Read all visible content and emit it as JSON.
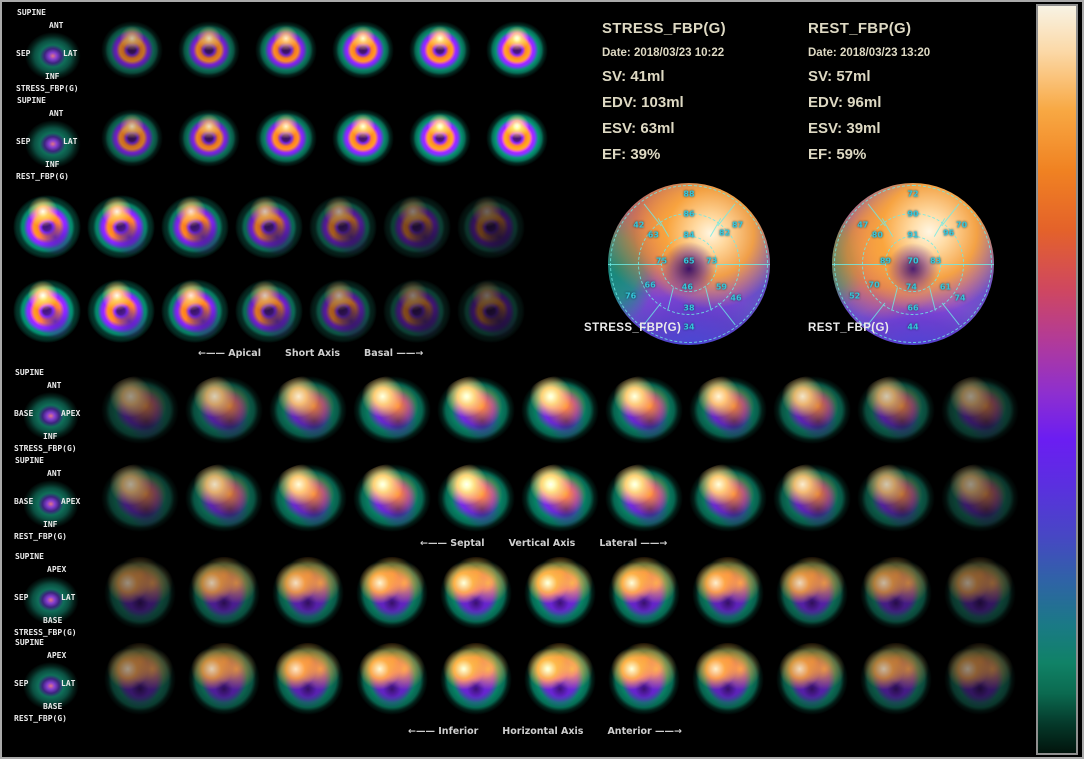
{
  "stress_panel": {
    "title": "STRESS_FBP(G)",
    "date": "Date: 2018/03/23 10:22",
    "sv": "SV: 41ml",
    "edv": "EDV: 103ml",
    "esv": "ESV: 63ml",
    "ef": "EF: 39%"
  },
  "rest_panel": {
    "title": "REST_FBP(G)",
    "date": "Date: 2018/03/23 13:20",
    "sv": "SV: 57ml",
    "edv": "EDV: 96ml",
    "esv": "ESV: 39ml",
    "ef": "EF: 59%"
  },
  "sections": [
    {
      "name": "short-axis-apical",
      "rows": [
        {
          "series_label": "STRESS_FBP(G)",
          "shape": "sa",
          "orient": {
            "corner": "SUPINE",
            "top": "ANT",
            "left": "SEP",
            "right": "LAT",
            "bottom": "INF"
          },
          "cells": [
            0.8,
            0.9,
            1.0,
            1.08,
            1.12,
            1.18
          ]
        },
        {
          "series_label": "REST_FBP(G)",
          "shape": "sa",
          "orient": {
            "corner": "SUPINE",
            "top": "ANT",
            "left": "SEP",
            "right": "LAT",
            "bottom": "INF"
          },
          "cells": [
            0.85,
            0.95,
            1.05,
            1.12,
            1.18,
            1.22
          ]
        }
      ]
    },
    {
      "name": "short-axis-basal",
      "caption": {
        "left": "←—— Apical",
        "mid": "Short Axis",
        "right": "Basal ——→"
      },
      "rows": [
        {
          "shape": "sab",
          "cells": [
            1.18,
            1.12,
            1.02,
            0.88,
            0.7,
            0.55,
            0.45
          ]
        },
        {
          "shape": "sab",
          "cells": [
            1.22,
            1.16,
            1.06,
            0.9,
            0.72,
            0.55,
            0.45
          ]
        }
      ]
    },
    {
      "name": "vertical-long-axis",
      "caption": {
        "left": "←—— Septal",
        "mid": "Vertical Axis",
        "right": "Lateral ——→"
      },
      "rows": [
        {
          "series_label": "STRESS_FBP(G)",
          "shape": "vla",
          "orient": {
            "corner": "SUPINE",
            "top": "ANT",
            "left": "BASE",
            "right": "APEX",
            "bottom": "INF"
          },
          "cells": [
            0.62,
            0.85,
            0.98,
            1.08,
            1.12,
            1.12,
            1.08,
            1.02,
            0.95,
            0.82,
            0.6
          ]
        },
        {
          "series_label": "REST_FBP(G)",
          "shape": "vla",
          "orient": {
            "corner": "SUPINE",
            "top": "ANT",
            "left": "BASE",
            "right": "APEX",
            "bottom": "INF"
          },
          "cells": [
            0.68,
            0.92,
            1.05,
            1.12,
            1.16,
            1.16,
            1.12,
            1.06,
            0.98,
            0.82,
            0.6
          ]
        }
      ]
    },
    {
      "name": "horizontal-long-axis",
      "caption": {
        "left": "←—— Inferior",
        "mid": "Horizontal Axis",
        "right": "Anterior ——→"
      },
      "rows": [
        {
          "series_label": "STRESS_FBP(G)",
          "shape": "hla",
          "orient": {
            "corner": "SUPINE",
            "top": "APEX",
            "left": "SEP",
            "right": "LAT",
            "bottom": "BASE"
          },
          "cells": [
            0.62,
            0.85,
            0.98,
            1.08,
            1.14,
            1.16,
            1.12,
            1.05,
            0.95,
            0.8,
            0.6
          ]
        },
        {
          "series_label": "REST_FBP(G)",
          "shape": "hla",
          "orient": {
            "corner": "SUPINE",
            "top": "APEX",
            "left": "SEP",
            "right": "LAT",
            "bottom": "BASE"
          },
          "cells": [
            0.66,
            0.9,
            1.02,
            1.1,
            1.16,
            1.18,
            1.14,
            1.06,
            0.96,
            0.8,
            0.6
          ]
        }
      ]
    }
  ],
  "polar_maps": [
    {
      "label": "STRESS_FBP(G)",
      "values": [
        {
          "v": 88,
          "x": 50,
          "y": 7
        },
        {
          "v": 42,
          "x": 19,
          "y": 26
        },
        {
          "v": 87,
          "x": 80,
          "y": 26
        },
        {
          "v": 86,
          "x": 50,
          "y": 19
        },
        {
          "v": 63,
          "x": 28,
          "y": 32
        },
        {
          "v": 82,
          "x": 72,
          "y": 31
        },
        {
          "v": 84,
          "x": 50,
          "y": 32
        },
        {
          "v": 75,
          "x": 33,
          "y": 48
        },
        {
          "v": 73,
          "x": 64,
          "y": 48
        },
        {
          "v": 65,
          "x": 50,
          "y": 48
        },
        {
          "v": 46,
          "x": 49,
          "y": 64
        },
        {
          "v": 66,
          "x": 26,
          "y": 63
        },
        {
          "v": 59,
          "x": 70,
          "y": 64
        },
        {
          "v": 38,
          "x": 50,
          "y": 77
        },
        {
          "v": 76,
          "x": 14,
          "y": 70
        },
        {
          "v": 46,
          "x": 79,
          "y": 71
        },
        {
          "v": 34,
          "x": 50,
          "y": 89
        }
      ]
    },
    {
      "label": "REST_FBP(G)",
      "values": [
        {
          "v": 72,
          "x": 50,
          "y": 7
        },
        {
          "v": 47,
          "x": 19,
          "y": 26
        },
        {
          "v": 70,
          "x": 80,
          "y": 26
        },
        {
          "v": 90,
          "x": 50,
          "y": 19
        },
        {
          "v": 80,
          "x": 28,
          "y": 32
        },
        {
          "v": 96,
          "x": 72,
          "y": 31
        },
        {
          "v": 91,
          "x": 50,
          "y": 32
        },
        {
          "v": 89,
          "x": 33,
          "y": 48
        },
        {
          "v": 83,
          "x": 64,
          "y": 48
        },
        {
          "v": 70,
          "x": 50,
          "y": 48
        },
        {
          "v": 74,
          "x": 49,
          "y": 64
        },
        {
          "v": 70,
          "x": 26,
          "y": 63
        },
        {
          "v": 61,
          "x": 70,
          "y": 64
        },
        {
          "v": 66,
          "x": 50,
          "y": 77
        },
        {
          "v": 52,
          "x": 14,
          "y": 70
        },
        {
          "v": 74,
          "x": 79,
          "y": 71
        },
        {
          "v": 44,
          "x": 50,
          "y": 89
        }
      ]
    }
  ],
  "colorbar": {
    "stops": [
      "#f8f3e4 0%",
      "#fbd9a8 6%",
      "#f8a843 14%",
      "#f08222 22%",
      "#e4622a 30%",
      "#cf4760 38%",
      "#b13a9a 45%",
      "#8d2fd0 52%",
      "#6b1df2 58%",
      "#5b2fe0 64%",
      "#4747c4 71%",
      "#2f63a6 77%",
      "#1a7a85 83%",
      "#108266 88%",
      "#0b6a50 92%",
      "#053a2b 96%",
      "#01140c 100%"
    ]
  }
}
